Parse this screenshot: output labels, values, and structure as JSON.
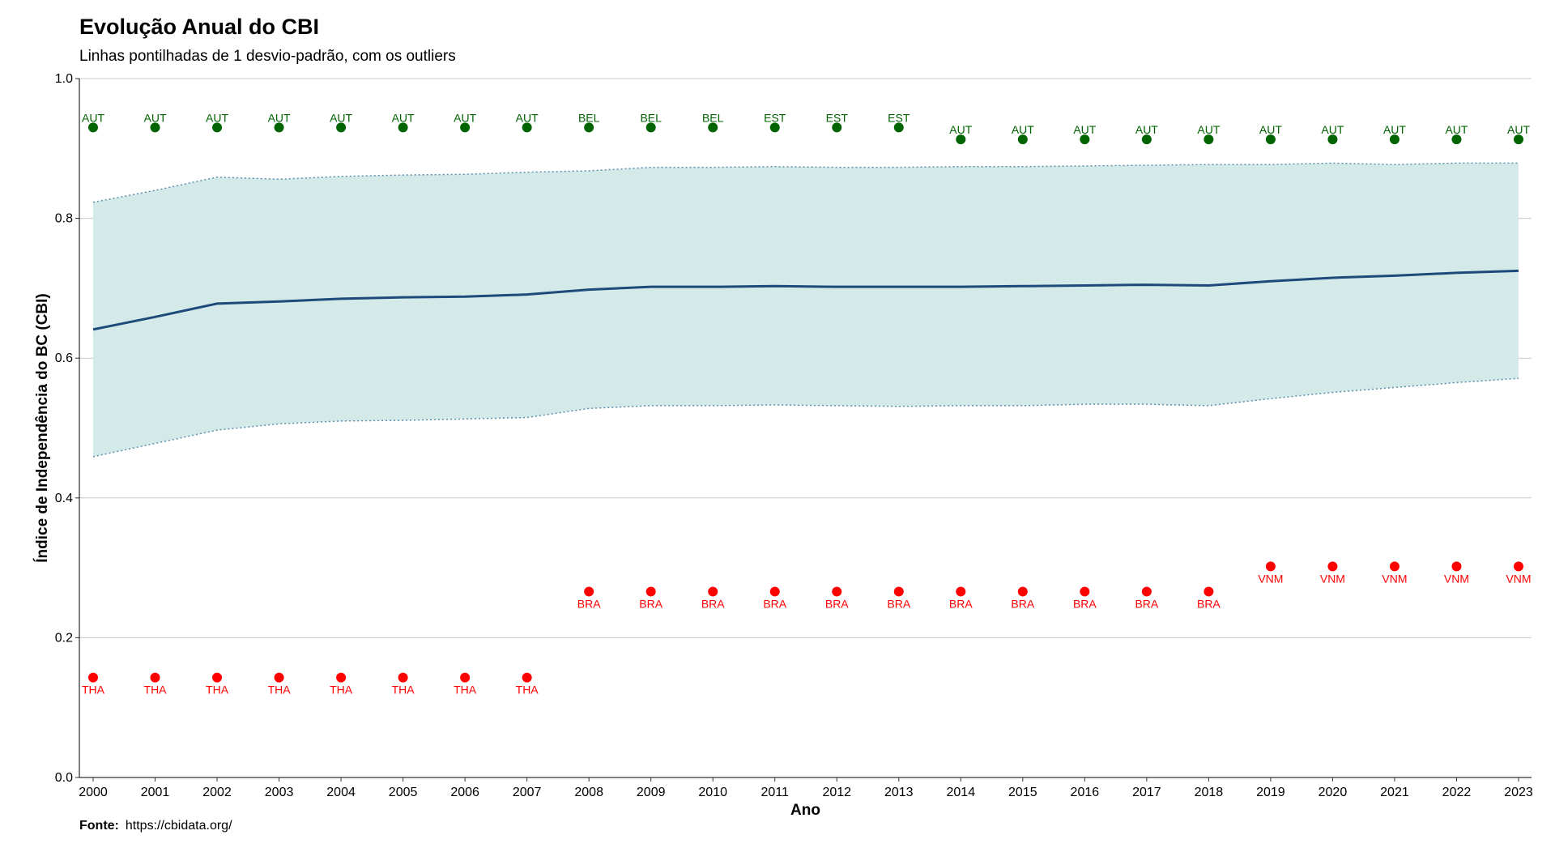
{
  "chart_data": {
    "type": "line",
    "title": "Evolução Anual do CBI",
    "subtitle": "Linhas pontilhadas de 1 desvio-padrão, com os outliers",
    "xlabel": "Ano",
    "ylabel": "Índice de Independência do BC (CBI)",
    "ylim": [
      0,
      1
    ],
    "yticks": [
      "0.0",
      "0.2",
      "0.4",
      "0.6",
      "0.8",
      "1.0"
    ],
    "x": [
      2000,
      2001,
      2002,
      2003,
      2004,
      2005,
      2006,
      2007,
      2008,
      2009,
      2010,
      2011,
      2012,
      2013,
      2014,
      2015,
      2016,
      2017,
      2018,
      2019,
      2020,
      2021,
      2022,
      2023
    ],
    "mean": [
      0.641,
      0.659,
      0.678,
      0.681,
      0.685,
      0.687,
      0.688,
      0.691,
      0.698,
      0.702,
      0.702,
      0.703,
      0.702,
      0.702,
      0.702,
      0.703,
      0.704,
      0.705,
      0.704,
      0.71,
      0.715,
      0.718,
      0.722,
      0.725
    ],
    "upper": [
      0.823,
      0.84,
      0.859,
      0.856,
      0.86,
      0.862,
      0.863,
      0.866,
      0.868,
      0.873,
      0.873,
      0.874,
      0.873,
      0.873,
      0.874,
      0.874,
      0.875,
      0.876,
      0.877,
      0.877,
      0.879,
      0.877,
      0.879,
      0.879
    ],
    "lower": [
      0.459,
      0.478,
      0.497,
      0.506,
      0.51,
      0.511,
      0.513,
      0.515,
      0.528,
      0.532,
      0.532,
      0.533,
      0.532,
      0.531,
      0.532,
      0.532,
      0.534,
      0.534,
      0.532,
      0.542,
      0.551,
      0.558,
      0.565,
      0.571
    ],
    "max_outliers": {
      "labels": [
        "AUT",
        "AUT",
        "AUT",
        "AUT",
        "AUT",
        "AUT",
        "AUT",
        "AUT",
        "BEL",
        "BEL",
        "BEL",
        "EST",
        "EST",
        "EST",
        "AUT",
        "AUT",
        "AUT",
        "AUT",
        "AUT",
        "AUT",
        "AUT",
        "AUT",
        "AUT",
        "AUT"
      ],
      "values": [
        0.93,
        0.93,
        0.93,
        0.93,
        0.93,
        0.93,
        0.93,
        0.93,
        0.93,
        0.93,
        0.93,
        0.93,
        0.93,
        0.93,
        0.913,
        0.913,
        0.913,
        0.913,
        0.913,
        0.913,
        0.913,
        0.913,
        0.913,
        0.913
      ],
      "color": "#006400"
    },
    "min_outliers": {
      "labels": [
        "THA",
        "THA",
        "THA",
        "THA",
        "THA",
        "THA",
        "THA",
        "THA",
        "BRA",
        "BRA",
        "BRA",
        "BRA",
        "BRA",
        "BRA",
        "BRA",
        "BRA",
        "BRA",
        "BRA",
        "BRA",
        "VNM",
        "VNM",
        "VNM",
        "VNM",
        "VNM"
      ],
      "values": [
        0.143,
        0.143,
        0.143,
        0.143,
        0.143,
        0.143,
        0.143,
        0.143,
        0.266,
        0.266,
        0.266,
        0.266,
        0.266,
        0.266,
        0.266,
        0.266,
        0.266,
        0.266,
        0.266,
        0.302,
        0.302,
        0.302,
        0.302,
        0.302
      ],
      "color": "#ff0000"
    },
    "colors": {
      "band": "#d4eae8",
      "mean_line": "#1d4a7a",
      "band_border": "#5a8fb0",
      "grid": "#c8c8c8"
    },
    "grid": true,
    "legend": "none"
  },
  "source": {
    "label": "Fonte:",
    "url": "https://cbidata.org/"
  }
}
